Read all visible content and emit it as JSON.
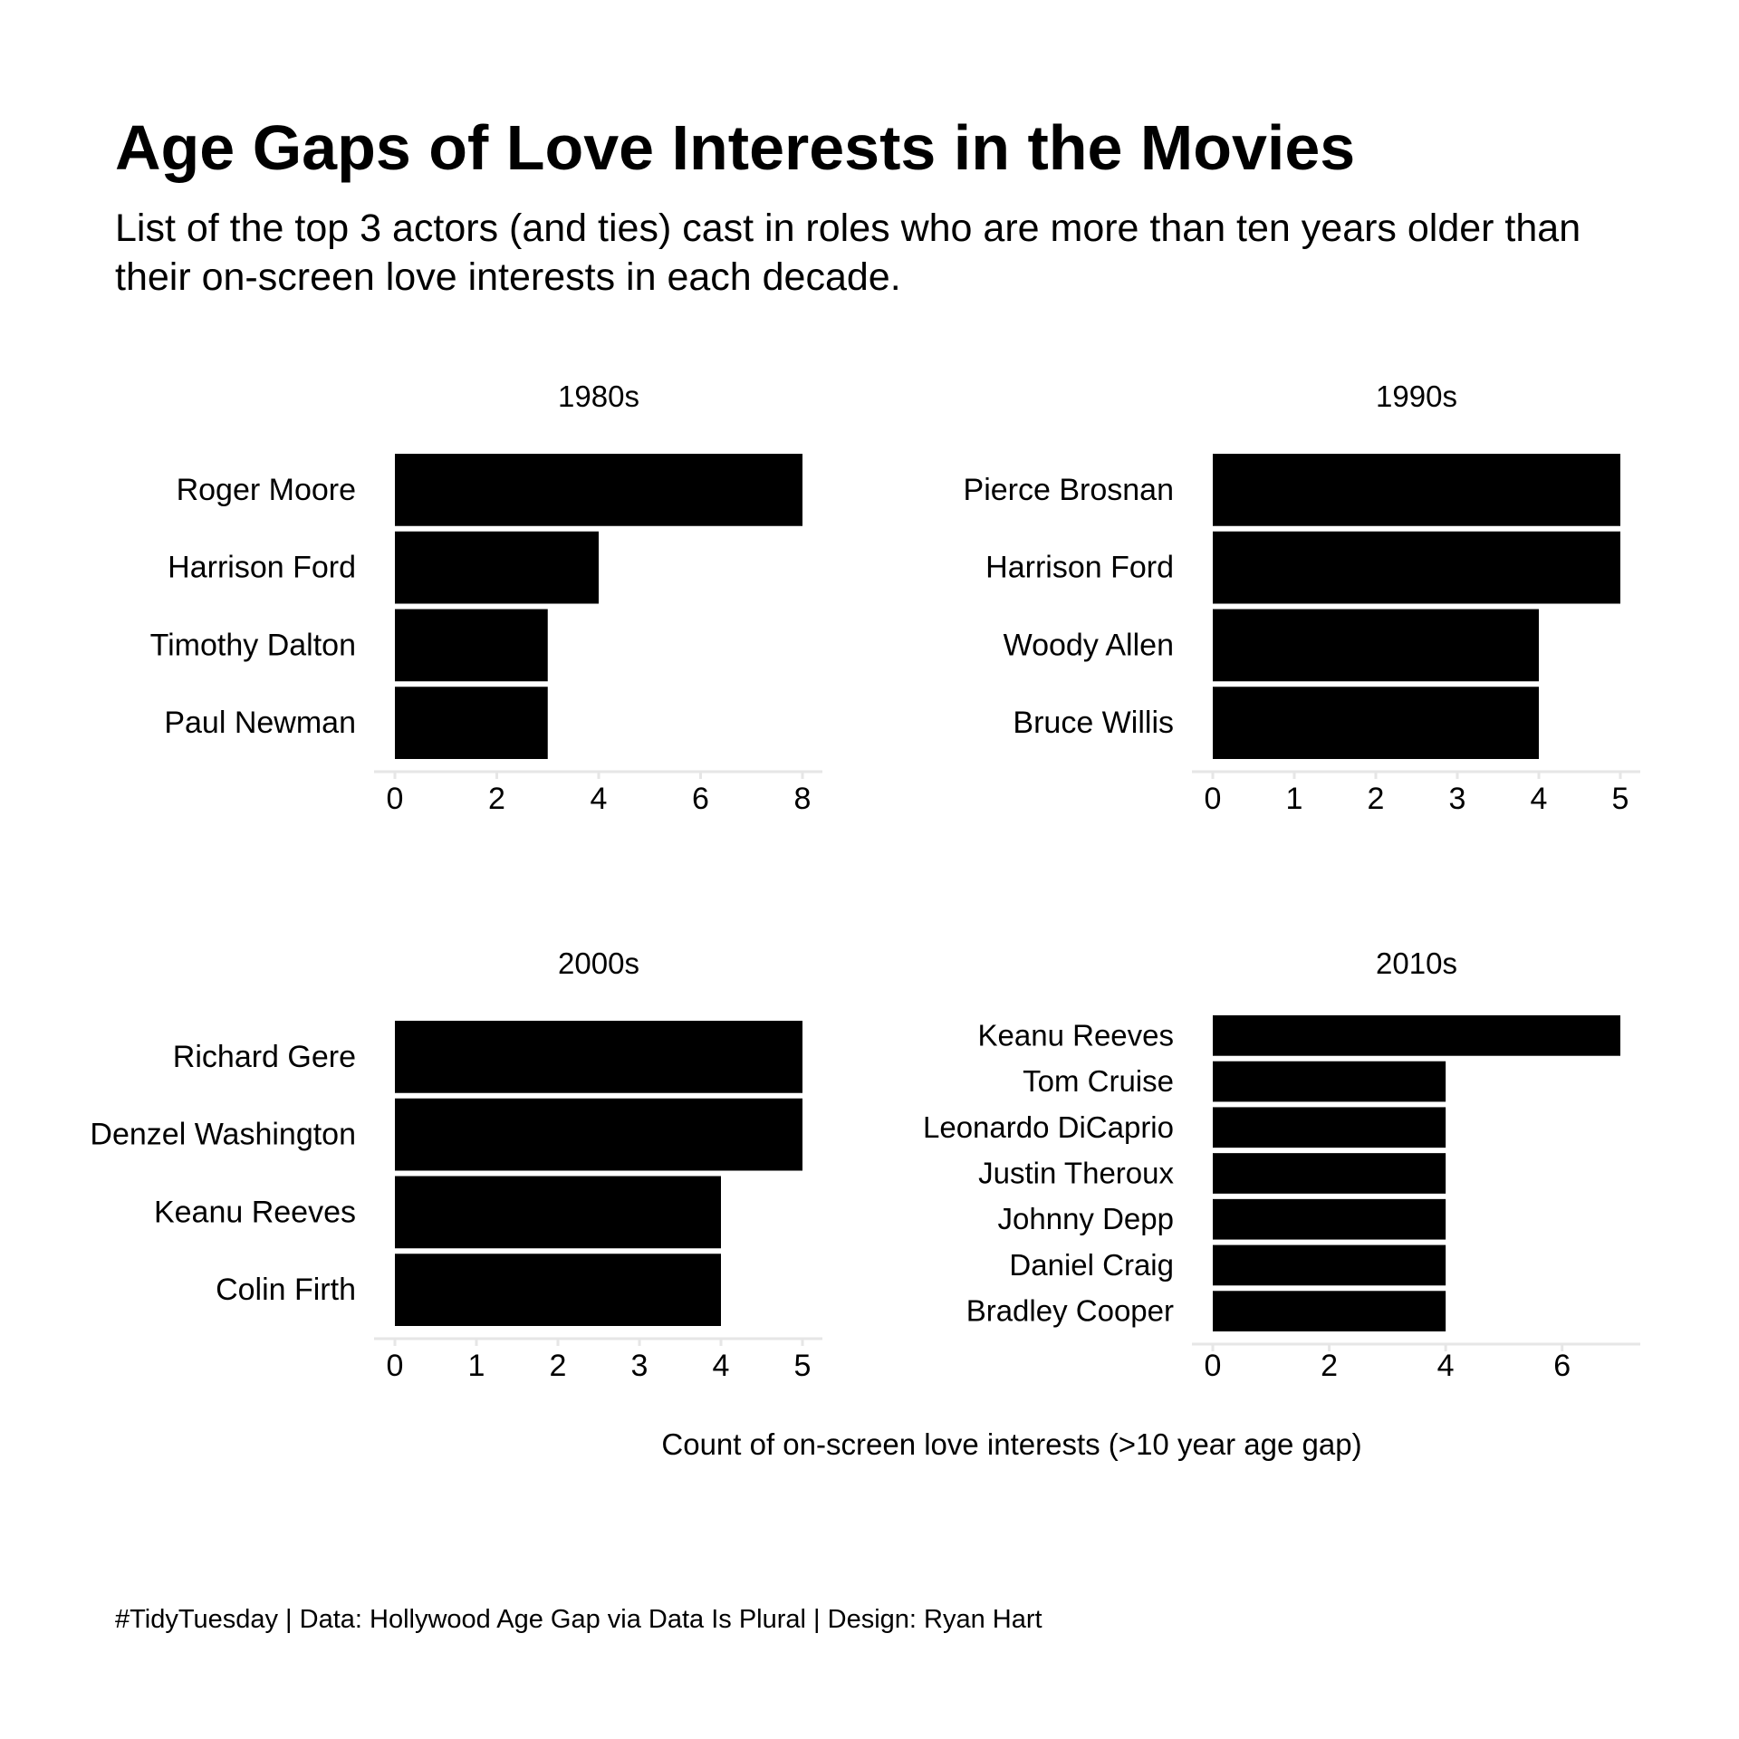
{
  "chart_data": {
    "type": "bar",
    "orientation": "horizontal",
    "title": "Age Gaps of Love Interests in the Movies",
    "subtitle": [
      "List of the top 3 actors (and ties) cast in roles who are more than ten years older than",
      "their on-screen love interests in each decade."
    ],
    "xlabel": "Count of on-screen love interests (>10 year age gap)",
    "ylabel": "",
    "caption": "#TidyTuesday | Data: Hollywood Age Gap via Data Is Plural | Design: Ryan Hart",
    "grid": false,
    "bar_color": "#000000",
    "axis_line_color": "#e6e6e6",
    "panels": [
      {
        "facet": "1980s",
        "categories": [
          "Roger Moore",
          "Harrison Ford",
          "Timothy Dalton",
          "Paul Newman"
        ],
        "values": [
          8,
          4,
          3,
          3
        ],
        "xticks": [
          0,
          2,
          4,
          6,
          8
        ],
        "xlim": [
          0,
          8
        ]
      },
      {
        "facet": "1990s",
        "categories": [
          "Pierce Brosnan",
          "Harrison Ford",
          "Woody Allen",
          "Bruce Willis"
        ],
        "values": [
          5,
          5,
          4,
          4
        ],
        "xticks": [
          0,
          1,
          2,
          3,
          4,
          5
        ],
        "xlim": [
          0,
          5
        ]
      },
      {
        "facet": "2000s",
        "categories": [
          "Richard Gere",
          "Denzel Washington",
          "Keanu Reeves",
          "Colin Firth"
        ],
        "values": [
          5,
          5,
          4,
          4
        ],
        "xticks": [
          0,
          1,
          2,
          3,
          4,
          5
        ],
        "xlim": [
          0,
          5
        ]
      },
      {
        "facet": "2010s",
        "categories": [
          "Keanu Reeves",
          "Tom Cruise",
          "Leonardo DiCaprio",
          "Justin Theroux",
          "Johnny Depp",
          "Daniel Craig",
          "Bradley Cooper"
        ],
        "values": [
          7,
          4,
          4,
          4,
          4,
          4,
          4
        ],
        "xticks": [
          0,
          2,
          4,
          6
        ],
        "xlim": [
          0,
          7
        ]
      }
    ]
  }
}
